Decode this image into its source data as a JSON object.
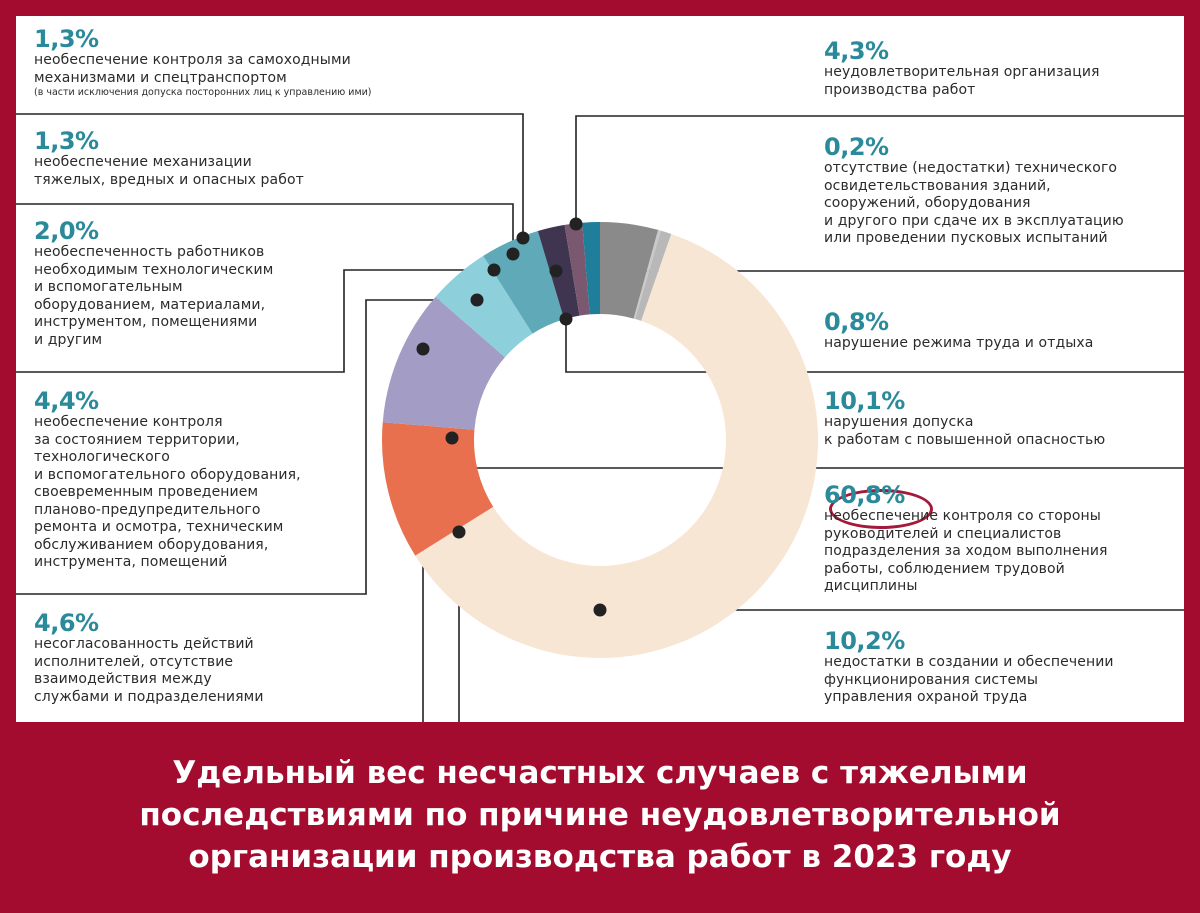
{
  "chart_data": {
    "type": "pie",
    "style": "donut",
    "highlight": "60,8%",
    "segments": [
      {
        "value": 4.3,
        "value_label": "4,3%",
        "label": "неудовлетворительная организация\nпроизводства работ",
        "note": "",
        "color": "#8a8a8a"
      },
      {
        "value": 0.2,
        "value_label": "0,2%",
        "label": "отсутствие (недостатки) технического\nосвидетельствования зданий,\nсооружений, оборудования\nи другого при сдаче их в эксплуатацию\nили проведении пусковых испытаний",
        "note": "",
        "color": "#c9c9c9"
      },
      {
        "value": 0.8,
        "value_label": "0,8%",
        "label": "нарушение режима труда и отдыха",
        "note": "",
        "color": "#b8b8b8"
      },
      {
        "value": 60.8,
        "value_label": "60,8%",
        "label": "необеспечение контроля со стороны\nруководителей и специалистов\nподразделения за ходом выполнения\nработы, соблюдением трудовой\nдисциплины",
        "note": "",
        "color": "#f8e6d5"
      },
      {
        "value": 10.2,
        "value_label": "10,2%",
        "label": "недостатки в создании и обеспечении\nфункционирования системы\nуправления охраной труда",
        "note": "",
        "color": "#e8704f"
      },
      {
        "value": 10.1,
        "value_label": "10,1%",
        "label": "нарушения допуска\nк работам с повышенной опасностью",
        "note": "",
        "color": "#a39cc5"
      },
      {
        "value": 4.6,
        "value_label": "4,6%",
        "label": "несогласованность действий\nисполнителей, отсутствие\nвзаимодействия между\nслужбами и подразделениями",
        "note": "",
        "color": "#8dd0dc"
      },
      {
        "value": 4.4,
        "value_label": "4,4%",
        "label": "необеспечение контроля\nза состоянием территории,\nтехнологического\nи вспомогательного оборудования,\nсвоевременным проведением\nпланово-предупредительного\nремонта и осмотра, техническим\nобслуживанием оборудования,\nинструмента, помещений",
        "note": "",
        "color": "#5fa9b8"
      },
      {
        "value": 2.0,
        "value_label": "2,0%",
        "label": "необеспеченность работников\nнеобходимым технологическим\nи вспомогательным\nоборудованием, материалами,\nинструментом, помещениями\nи другим",
        "note": "",
        "color": "#3f3550"
      },
      {
        "value": 1.3,
        "value_label": "1,3%",
        "label": "необеспечение механизации\nтяжелых, вредных и опасных работ",
        "note": "",
        "color": "#7a5870"
      },
      {
        "value": 1.3,
        "value_label": "1,3%",
        "label": "необеспечение контроля за самоходными\nмеханизмами и спецтранспортом",
        "note": "(в части исключения допуска посторонних лиц к управлению ими)",
        "color": "#1f7f9a"
      }
    ]
  },
  "caption": "Удельный вес несчастных случаев с тяжелыми\nпоследствиями по причине неудовлетворительной\nорганизации производства работ в 2023 году",
  "colors": {
    "background": "#a30c2e",
    "panel": "#ffffff",
    "percent_text": "#2a8a9a",
    "highlight_ring": "#a31a3a",
    "leader_line": "#222222"
  }
}
